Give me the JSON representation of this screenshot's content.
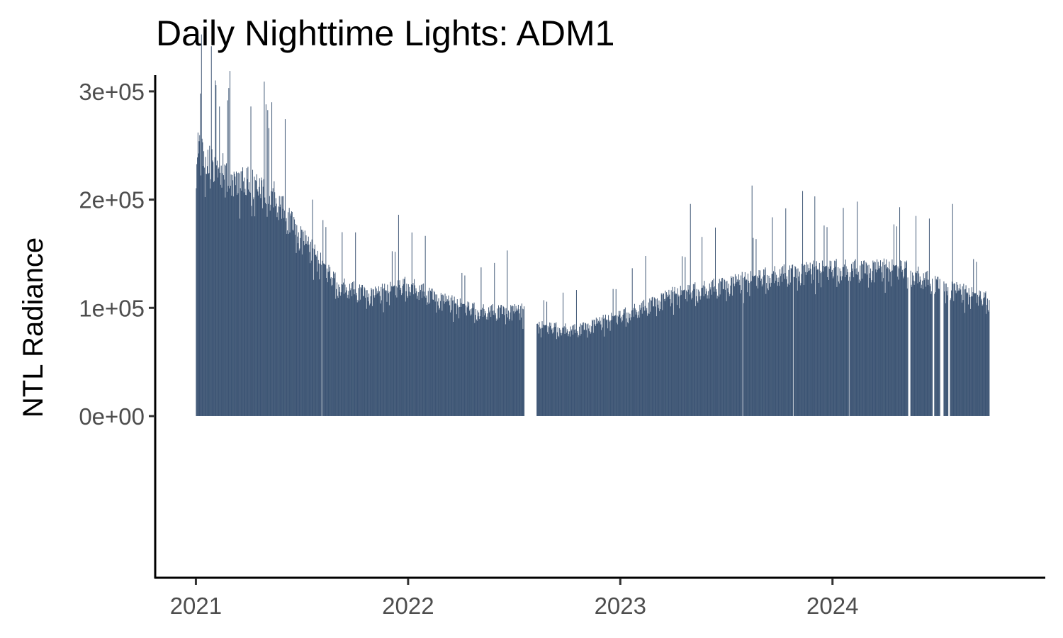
{
  "chart_data": {
    "type": "bar",
    "title": "Daily Nighttime Lights: ADM1",
    "xlabel": "",
    "ylabel": "NTL Radiance",
    "bar_color": "#3d5574",
    "grid": false,
    "legend": "none",
    "x_range": [
      "2020-10-23",
      "2025-01-01"
    ],
    "y_range": [
      -150000,
      315000
    ],
    "y_ticks": [
      {
        "value": 0,
        "label": "0e+00"
      },
      {
        "value": 100000,
        "label": "1e+05"
      },
      {
        "value": 200000,
        "label": "2e+05"
      },
      {
        "value": 300000,
        "label": "3e+05"
      }
    ],
    "x_ticks": [
      {
        "date": "2021-01-01",
        "label": "2021"
      },
      {
        "date": "2022-01-01",
        "label": "2022"
      },
      {
        "date": "2023-01-01",
        "label": "2023"
      },
      {
        "date": "2024-01-01",
        "label": "2024"
      }
    ],
    "series_start": "2021-01-01",
    "series_end": "2024-09-26",
    "missing_date_ranges": [
      [
        "2021-08-05",
        "2021-08-05"
      ],
      [
        "2022-07-20",
        "2022-08-09"
      ],
      [
        "2023-07-30",
        "2023-07-30"
      ],
      [
        "2023-10-25",
        "2023-10-25"
      ],
      [
        "2024-01-29",
        "2024-01-29"
      ],
      [
        "2024-05-10",
        "2024-05-13"
      ],
      [
        "2024-06-21",
        "2024-06-23"
      ],
      [
        "2024-07-04",
        "2024-07-09"
      ],
      [
        "2024-07-18",
        "2024-07-20"
      ]
    ],
    "trend_points": [
      {
        "date": "2021-01-01",
        "value": 255000
      },
      {
        "date": "2021-03-01",
        "value": 230000
      },
      {
        "date": "2021-05-15",
        "value": 210000
      },
      {
        "date": "2021-07-01",
        "value": 170000
      },
      {
        "date": "2021-09-01",
        "value": 125000
      },
      {
        "date": "2021-11-01",
        "value": 115000
      },
      {
        "date": "2022-01-01",
        "value": 125000
      },
      {
        "date": "2022-03-01",
        "value": 110000
      },
      {
        "date": "2022-05-01",
        "value": 100000
      },
      {
        "date": "2022-07-15",
        "value": 100000
      },
      {
        "date": "2022-08-15",
        "value": 85000
      },
      {
        "date": "2022-10-15",
        "value": 82000
      },
      {
        "date": "2023-01-01",
        "value": 95000
      },
      {
        "date": "2023-04-01",
        "value": 115000
      },
      {
        "date": "2023-07-01",
        "value": 125000
      },
      {
        "date": "2023-10-01",
        "value": 135000
      },
      {
        "date": "2024-01-01",
        "value": 140000
      },
      {
        "date": "2024-05-01",
        "value": 140000
      },
      {
        "date": "2024-07-01",
        "value": 125000
      },
      {
        "date": "2024-09-26",
        "value": 110000
      }
    ],
    "spike_points": [
      {
        "date": "2021-01-08",
        "value": 298000
      },
      {
        "date": "2021-02-10",
        "value": 286000
      },
      {
        "date": "2021-05-01",
        "value": 288000
      },
      {
        "date": "2021-05-06",
        "value": 266000
      },
      {
        "date": "2021-07-20",
        "value": 200000
      },
      {
        "date": "2021-12-15",
        "value": 186000
      },
      {
        "date": "2022-06-20",
        "value": 153000
      },
      {
        "date": "2023-05-01",
        "value": 196000
      },
      {
        "date": "2023-08-15",
        "value": 213000
      },
      {
        "date": "2023-11-10",
        "value": 208000
      },
      {
        "date": "2023-12-01",
        "value": 203000
      },
      {
        "date": "2024-04-25",
        "value": 193000
      },
      {
        "date": "2024-07-25",
        "value": 196000
      }
    ]
  }
}
